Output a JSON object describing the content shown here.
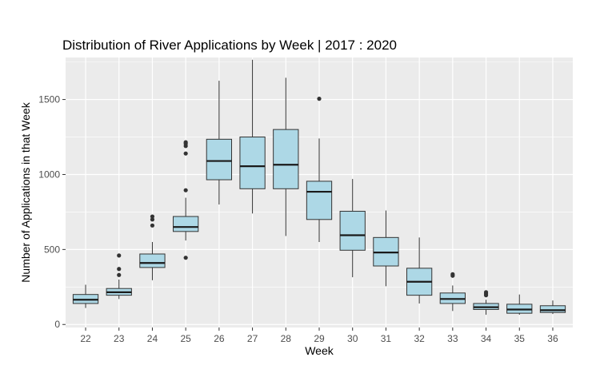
{
  "chart_data": {
    "type": "boxplot",
    "title": "Distribution of River Applications by Week | 2017 : 2020",
    "xlabel": "Week",
    "ylabel": "Number of Applications in that Week",
    "ylim": [
      -20,
      1780
    ],
    "yticks": [
      0,
      500,
      1000,
      1500
    ],
    "grid": true,
    "box_color": "#add8e6",
    "panel_color": "#ebebeb",
    "categories": [
      "22",
      "23",
      "24",
      "25",
      "26",
      "27",
      "28",
      "29",
      "30",
      "31",
      "32",
      "33",
      "34",
      "35",
      "36"
    ],
    "boxes": [
      {
        "week": "22",
        "whisker_low": 110,
        "q1": 140,
        "median": 165,
        "q3": 200,
        "whisker_high": 265,
        "outliers": []
      },
      {
        "week": "23",
        "whisker_low": 170,
        "q1": 195,
        "median": 215,
        "q3": 240,
        "whisker_high": 300,
        "outliers": [
          330,
          370,
          460
        ]
      },
      {
        "week": "24",
        "whisker_low": 295,
        "q1": 380,
        "median": 410,
        "q3": 470,
        "whisker_high": 550,
        "outliers": [
          660,
          700,
          720
        ]
      },
      {
        "week": "25",
        "whisker_low": 560,
        "q1": 620,
        "median": 650,
        "q3": 720,
        "whisker_high": 845,
        "outliers": [
          445,
          895,
          1140,
          1190,
          1205,
          1215
        ]
      },
      {
        "week": "26",
        "whisker_low": 800,
        "q1": 965,
        "median": 1090,
        "q3": 1235,
        "whisker_high": 1625,
        "outliers": []
      },
      {
        "week": "27",
        "whisker_low": 740,
        "q1": 905,
        "median": 1055,
        "q3": 1250,
        "whisker_high": 1765,
        "outliers": []
      },
      {
        "week": "28",
        "whisker_low": 590,
        "q1": 905,
        "median": 1065,
        "q3": 1300,
        "whisker_high": 1645,
        "outliers": []
      },
      {
        "week": "29",
        "whisker_low": 550,
        "q1": 700,
        "median": 885,
        "q3": 955,
        "whisker_high": 1240,
        "outliers": [
          1505
        ]
      },
      {
        "week": "30",
        "whisker_low": 315,
        "q1": 495,
        "median": 595,
        "q3": 755,
        "whisker_high": 970,
        "outliers": []
      },
      {
        "week": "31",
        "whisker_low": 255,
        "q1": 390,
        "median": 480,
        "q3": 580,
        "whisker_high": 760,
        "outliers": []
      },
      {
        "week": "32",
        "whisker_low": 140,
        "q1": 195,
        "median": 285,
        "q3": 375,
        "whisker_high": 580,
        "outliers": []
      },
      {
        "week": "33",
        "whisker_low": 90,
        "q1": 140,
        "median": 170,
        "q3": 210,
        "whisker_high": 260,
        "outliers": [
          325,
          335
        ]
      },
      {
        "week": "34",
        "whisker_low": 65,
        "q1": 100,
        "median": 115,
        "q3": 140,
        "whisker_high": 165,
        "outliers": [
          195,
          205,
          215
        ]
      },
      {
        "week": "35",
        "whisker_low": 65,
        "q1": 75,
        "median": 100,
        "q3": 135,
        "whisker_high": 200,
        "outliers": []
      },
      {
        "week": "36",
        "whisker_low": 70,
        "q1": 80,
        "median": 95,
        "q3": 125,
        "whisker_high": 160,
        "outliers": []
      }
    ]
  }
}
